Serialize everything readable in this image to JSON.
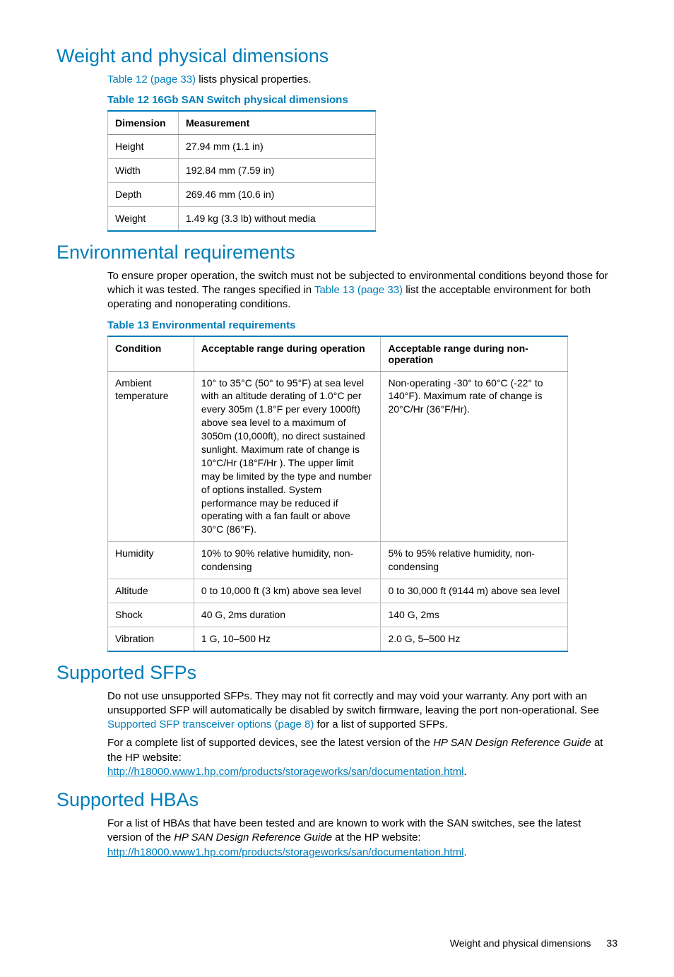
{
  "colors": {
    "accent": "#007dba",
    "text": "#000000",
    "table_border": "#bbbbbb",
    "header_border": "#888888"
  },
  "sect1": {
    "heading": "Weight and physical dimensions",
    "intro_a": "Table 12 (page 33)",
    "intro_b": " lists physical properties.",
    "table_caption": "Table 12 16Gb SAN Switch physical dimensions",
    "headers": {
      "c1": "Dimension",
      "c2": "Measurement"
    },
    "rows": [
      {
        "c1": "Height",
        "c2": "27.94 mm (1.1 in)"
      },
      {
        "c1": "Width",
        "c2": "192.84 mm (7.59 in)"
      },
      {
        "c1": "Depth",
        "c2": "269.46 mm (10.6 in)"
      },
      {
        "c1": "Weight",
        "c2": "1.49 kg (3.3 lb) without media"
      }
    ]
  },
  "sect2": {
    "heading": "Environmental requirements",
    "intro_a": "To ensure proper operation, the switch must not be subjected to environmental conditions beyond those for which it was tested. The ranges specified in ",
    "intro_link": "Table 13 (page 33)",
    "intro_b": " list the acceptable environment for both operating and nonoperating conditions.",
    "table_caption": "Table 13 Environmental requirements",
    "headers": {
      "c1": "Condition",
      "c2": "Acceptable range during operation",
      "c3": "Acceptable range during non-operation"
    },
    "rows": [
      {
        "c1": "Ambient temperature",
        "c2": "10° to 35°C (50° to 95°F) at sea level with an altitude derating of 1.0°C per every 305m (1.8°F per every 1000ft) above sea level to a maximum of 3050m (10,000ft), no direct sustained sunlight. Maximum rate of change is 10°C/Hr (18°F/Hr ). The upper limit may be limited by the type and number of options installed. System performance may be reduced if operating with a fan fault or above 30°C (86°F).",
        "c3": "Non-operating -30° to 60°C (-22° to 140°F). Maximum rate of change is 20°C/Hr (36°F/Hr)."
      },
      {
        "c1": "Humidity",
        "c2": "10% to 90% relative humidity, non-condensing",
        "c3": "5% to 95% relative humidity, non-condensing"
      },
      {
        "c1": "Altitude",
        "c2": "0 to 10,000 ft (3 km) above sea level",
        "c3": "0 to 30,000 ft (9144 m) above sea level"
      },
      {
        "c1": "Shock",
        "c2": "40 G, 2ms duration",
        "c3": "140 G, 2ms"
      },
      {
        "c1": "Vibration",
        "c2": "1 G, 10–500 Hz",
        "c3": "2.0 G, 5–500 Hz"
      }
    ]
  },
  "sect3": {
    "heading": "Supported SFPs",
    "p1a": "Do not use unsupported SFPs. They may not fit correctly and may void your warranty. Any port with an unsupported SFP will automatically be disabled by switch firmware, leaving the port non-operational. See ",
    "p1link": "Supported SFP transceiver options (page 8)",
    "p1b": " for a list of supported SFPs.",
    "p2a": "For a complete list of supported devices, see the latest version of the ",
    "p2i": "HP SAN Design Reference Guide",
    "p2b": " at the HP website:",
    "url": "http://h18000.www1.hp.com/products/storageworks/san/documentation.html",
    "dot": "."
  },
  "sect4": {
    "heading": "Supported HBAs",
    "p1a": "For a list of HBAs that have been tested and are known to work with the SAN switches, see the latest version of the ",
    "p1i": "HP SAN Design Reference Guide",
    "p1b": " at the HP website:",
    "url": "http://h18000.www1.hp.com/products/storageworks/san/documentation.html",
    "dot": "."
  },
  "footer": {
    "title": "Weight and physical dimensions",
    "page": "33"
  }
}
